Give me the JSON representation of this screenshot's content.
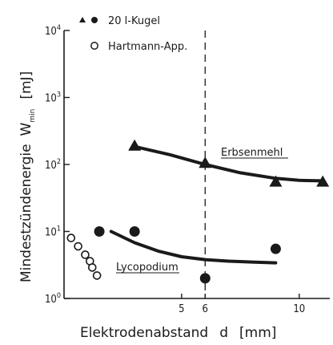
{
  "chart_data": {
    "type": "scatter",
    "xlabel": "Elektrodenabstand",
    "xvar": "d",
    "xunit": "[mm]",
    "ylabel": "Mindestzündenergie",
    "yvar": "W",
    "yvar_sub": "min",
    "yunit": "[mJ]",
    "x_ticks": [
      "5",
      "6",
      "10"
    ],
    "y_ticks": [
      {
        "base": "10",
        "exp": "0"
      },
      {
        "base": "10",
        "exp": "1"
      },
      {
        "base": "10",
        "exp": "2"
      },
      {
        "base": "10",
        "exp": "3"
      },
      {
        "base": "10",
        "exp": "4"
      }
    ],
    "xlim": [
      0,
      11.3
    ],
    "ylim": [
      1,
      10000
    ],
    "yscale": "log",
    "grid": false,
    "vline_x": 6,
    "legend": [
      {
        "symbol": "▲ ●",
        "label": "20 l-Kugel"
      },
      {
        "symbol": "○",
        "label": "Hartmann-App."
      }
    ],
    "series": [
      {
        "material": "Erbsenmehl",
        "marker": "filled-triangle",
        "x": [
          3,
          6,
          9,
          11
        ],
        "y": [
          190,
          105,
          55,
          55
        ],
        "trend": {
          "x": [
            3,
            4.5,
            6,
            7.5,
            9,
            10,
            11
          ],
          "y": [
            185,
            140,
            100,
            75,
            62,
            58,
            57
          ]
        }
      },
      {
        "material": "Lycopodium",
        "marker": "filled-circle",
        "x": [
          1.5,
          3,
          6,
          9
        ],
        "y": [
          10,
          10,
          2,
          5.5
        ],
        "trend": {
          "x": [
            2,
            3,
            4,
            5,
            6,
            7,
            8,
            9
          ],
          "y": [
            10,
            6.8,
            5.1,
            4.2,
            3.8,
            3.6,
            3.5,
            3.4
          ]
        }
      },
      {
        "material": "Hartmann-App.",
        "marker": "open-circle",
        "x": [
          0.3,
          0.6,
          0.9,
          1.1,
          1.2,
          1.4
        ],
        "y": [
          8,
          6,
          4.5,
          3.6,
          2.9,
          2.2
        ]
      }
    ],
    "annotations": [
      "Erbsenmehl",
      "Lycopodium"
    ]
  }
}
